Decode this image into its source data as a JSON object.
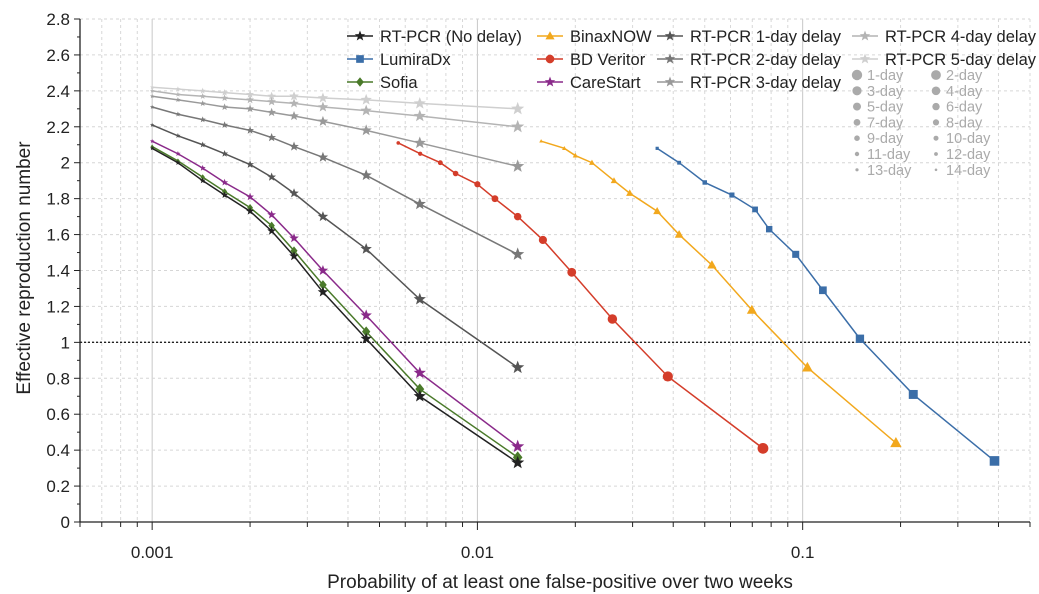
{
  "chart_data": {
    "type": "line",
    "title": "",
    "xlabel": "Probability of at least one false-positive over two weeks",
    "ylabel": "Effective reproduction number",
    "x_scale": "log",
    "xlim": [
      0.0006,
      0.5
    ],
    "ylim": [
      0,
      2.8
    ],
    "x_ticks": [
      {
        "value": 0.001,
        "label": "0.001"
      },
      {
        "value": 0.01,
        "label": "0.01"
      },
      {
        "value": 0.1,
        "label": "0.1"
      }
    ],
    "y_ticks": [
      {
        "value": 0,
        "label": "0"
      },
      {
        "value": 0.2,
        "label": "0.2"
      },
      {
        "value": 0.4,
        "label": "0.4"
      },
      {
        "value": 0.6,
        "label": "0.6"
      },
      {
        "value": 0.8,
        "label": "0.8"
      },
      {
        "value": 1,
        "label": "1"
      },
      {
        "value": 1.2,
        "label": "1.2"
      },
      {
        "value": 1.4,
        "label": "1.4"
      },
      {
        "value": 1.6,
        "label": "1.6"
      },
      {
        "value": 1.8,
        "label": "1.8"
      },
      {
        "value": 2,
        "label": "2"
      },
      {
        "value": 2.2,
        "label": "2.2"
      },
      {
        "value": 2.4,
        "label": "2.4"
      },
      {
        "value": 2.6,
        "label": "2.6"
      },
      {
        "value": 2.8,
        "label": "2.8"
      }
    ],
    "grid": true,
    "reference_line": 1,
    "legend_position": "top-right",
    "series": [
      {
        "name": "RT-PCR (No delay)",
        "color": "#222222",
        "marker": "star",
        "x": [
          0.001,
          0.0012,
          0.00143,
          0.00167,
          0.002,
          0.00233,
          0.00273,
          0.00335,
          0.00455,
          0.00665,
          0.0133
        ],
        "y": [
          2.08,
          2.0,
          1.9,
          1.82,
          1.73,
          1.62,
          1.48,
          1.28,
          1.02,
          0.7,
          0.33
        ]
      },
      {
        "name": "LumiraDx",
        "color": "#3b6ea8",
        "marker": "square",
        "x": [
          0.0357,
          0.0417,
          0.05,
          0.0606,
          0.0714,
          0.0789,
          0.0952,
          0.1154,
          0.15,
          0.2188,
          0.3889
        ],
        "y": [
          2.08,
          2.0,
          1.89,
          1.82,
          1.74,
          1.63,
          1.49,
          1.29,
          1.02,
          0.71,
          0.34
        ]
      },
      {
        "name": "Sofia",
        "color": "#4a7a2a",
        "marker": "diamond",
        "x": [
          0.001,
          0.0012,
          0.00143,
          0.00167,
          0.002,
          0.00233,
          0.00273,
          0.00335,
          0.00455,
          0.00665,
          0.0133
        ],
        "y": [
          2.09,
          2.01,
          1.92,
          1.84,
          1.75,
          1.65,
          1.51,
          1.32,
          1.06,
          0.74,
          0.36
        ]
      },
      {
        "name": "BinaxNOW",
        "color": "#f2a81d",
        "marker": "triangle",
        "x": [
          0.0157,
          0.0185,
          0.02,
          0.0225,
          0.0263,
          0.0294,
          0.0357,
          0.0417,
          0.0526,
          0.0698,
          0.1034,
          0.1935
        ],
        "y": [
          2.12,
          2.08,
          2.04,
          2.0,
          1.9,
          1.83,
          1.73,
          1.6,
          1.43,
          1.18,
          0.86,
          0.44
        ]
      },
      {
        "name": "BD Veritor",
        "color": "#d43d2a",
        "marker": "circle",
        "x": [
          0.00571,
          0.00667,
          0.00769,
          0.00857,
          0.01,
          0.01132,
          0.0133,
          0.0159,
          0.0195,
          0.026,
          0.0385,
          0.0755
        ],
        "y": [
          2.11,
          2.05,
          2.0,
          1.94,
          1.88,
          1.8,
          1.7,
          1.57,
          1.39,
          1.13,
          0.81,
          0.41
        ]
      },
      {
        "name": "CareStart",
        "color": "#8a2a8a",
        "marker": "star",
        "x": [
          0.001,
          0.0012,
          0.00143,
          0.00167,
          0.002,
          0.00233,
          0.00273,
          0.00335,
          0.00455,
          0.00665,
          0.0133
        ],
        "y": [
          2.12,
          2.05,
          1.97,
          1.89,
          1.81,
          1.71,
          1.58,
          1.4,
          1.15,
          0.83,
          0.42
        ]
      },
      {
        "name": "RT-PCR 1-day delay",
        "color": "#555555",
        "marker": "star",
        "x": [
          0.001,
          0.0012,
          0.00143,
          0.00167,
          0.002,
          0.00233,
          0.00273,
          0.00335,
          0.00455,
          0.00665,
          0.0133
        ],
        "y": [
          2.21,
          2.15,
          2.1,
          2.05,
          1.99,
          1.92,
          1.83,
          1.7,
          1.52,
          1.24,
          0.86
        ]
      },
      {
        "name": "RT-PCR 2-day delay",
        "color": "#777777",
        "marker": "star",
        "x": [
          0.001,
          0.0012,
          0.00143,
          0.00167,
          0.002,
          0.00233,
          0.00273,
          0.00335,
          0.00455,
          0.00665,
          0.0133
        ],
        "y": [
          2.31,
          2.27,
          2.24,
          2.21,
          2.18,
          2.14,
          2.09,
          2.03,
          1.93,
          1.77,
          1.49
        ]
      },
      {
        "name": "RT-PCR 3-day delay",
        "color": "#999999",
        "marker": "star",
        "x": [
          0.001,
          0.0012,
          0.00143,
          0.00167,
          0.002,
          0.00233,
          0.00273,
          0.00335,
          0.00455,
          0.00665,
          0.0133
        ],
        "y": [
          2.37,
          2.35,
          2.33,
          2.31,
          2.3,
          2.28,
          2.26,
          2.23,
          2.18,
          2.11,
          1.98
        ]
      },
      {
        "name": "RT-PCR 4-day delay",
        "color": "#b4b4b4",
        "marker": "star",
        "x": [
          0.001,
          0.0012,
          0.00143,
          0.00167,
          0.002,
          0.00233,
          0.00273,
          0.00335,
          0.00455,
          0.00665,
          0.0133
        ],
        "y": [
          2.4,
          2.38,
          2.37,
          2.36,
          2.35,
          2.34,
          2.33,
          2.31,
          2.29,
          2.26,
          2.2
        ]
      },
      {
        "name": "RT-PCR 5-day delay",
        "color": "#cfcfcf",
        "marker": "star",
        "x": [
          0.001,
          0.0012,
          0.00143,
          0.00167,
          0.002,
          0.00233,
          0.00273,
          0.00335,
          0.00455,
          0.00665,
          0.0133
        ],
        "y": [
          2.42,
          2.41,
          2.4,
          2.39,
          2.38,
          2.37,
          2.37,
          2.36,
          2.35,
          2.33,
          2.3
        ]
      }
    ],
    "legend_columns": [
      [
        "RT-PCR (No delay)",
        "LumiraDx",
        "Sofia"
      ],
      [
        "BinaxNOW",
        "BD Veritor",
        "CareStart"
      ],
      [
        "RT-PCR 1-day delay",
        "RT-PCR 2-day delay",
        "RT-PCR 3-day delay"
      ],
      [
        "RT-PCR 4-day delay",
        "RT-PCR 5-day delay"
      ]
    ],
    "size_legend": [
      [
        "1-day",
        "2-day"
      ],
      [
        "3-day",
        "4-day"
      ],
      [
        "5-day",
        "6-day"
      ],
      [
        "7-day",
        "8-day"
      ],
      [
        "9-day",
        "10-day"
      ],
      [
        "11-day",
        "12-day"
      ],
      [
        "13-day",
        "14-day"
      ]
    ],
    "size_legend_color": "#aaaaaa"
  }
}
